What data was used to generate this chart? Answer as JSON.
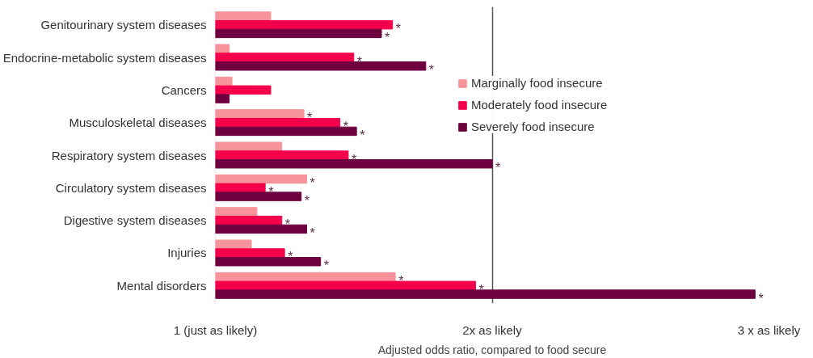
{
  "chart_data": {
    "type": "bar",
    "orientation": "horizontal",
    "xlabel": "Adjusted odds ratio, compared to food secure",
    "categories": [
      "Genitourinary system diseases",
      "Endocrine-metabolic system diseases",
      "Cancers",
      "Musculoskeletal diseases",
      "Respiratory system diseases",
      "Circulatory system diseases",
      "Digestive system diseases",
      "Injuries",
      "Mental disorders"
    ],
    "series": [
      {
        "name": "Marginally food insecure",
        "color": "#f7939a",
        "values": [
          1.2,
          1.05,
          1.06,
          1.32,
          1.24,
          1.33,
          1.15,
          1.13,
          1.65
        ],
        "value_labels": [
          null,
          null,
          null,
          "*",
          null,
          "*",
          null,
          null,
          "*"
        ]
      },
      {
        "name": "Moderately food insecure",
        "color": "#f5004a",
        "values": [
          1.64,
          1.5,
          1.2,
          1.45,
          1.48,
          1.18,
          1.24,
          1.25,
          1.94
        ],
        "value_labels": [
          "*",
          "*",
          null,
          "*",
          "*",
          "*",
          "*",
          "*",
          "*"
        ]
      },
      {
        "name": "Severely food insecure",
        "color": "#6e0040",
        "values": [
          1.6,
          1.76,
          1.05,
          1.51,
          2.0,
          1.31,
          1.33,
          1.38,
          2.95
        ],
        "value_labels": [
          "*",
          "*",
          null,
          "*",
          "*",
          "*",
          "*",
          "*",
          "*"
        ]
      }
    ],
    "xlim": [
      1,
      3
    ],
    "xticks": [
      {
        "value": 1,
        "label": "1 (just as likely)"
      },
      {
        "value": 2,
        "label": "2x as likely"
      },
      {
        "value": 3,
        "label": "3 x as likely"
      }
    ],
    "grid": "x",
    "legend": "top right"
  }
}
